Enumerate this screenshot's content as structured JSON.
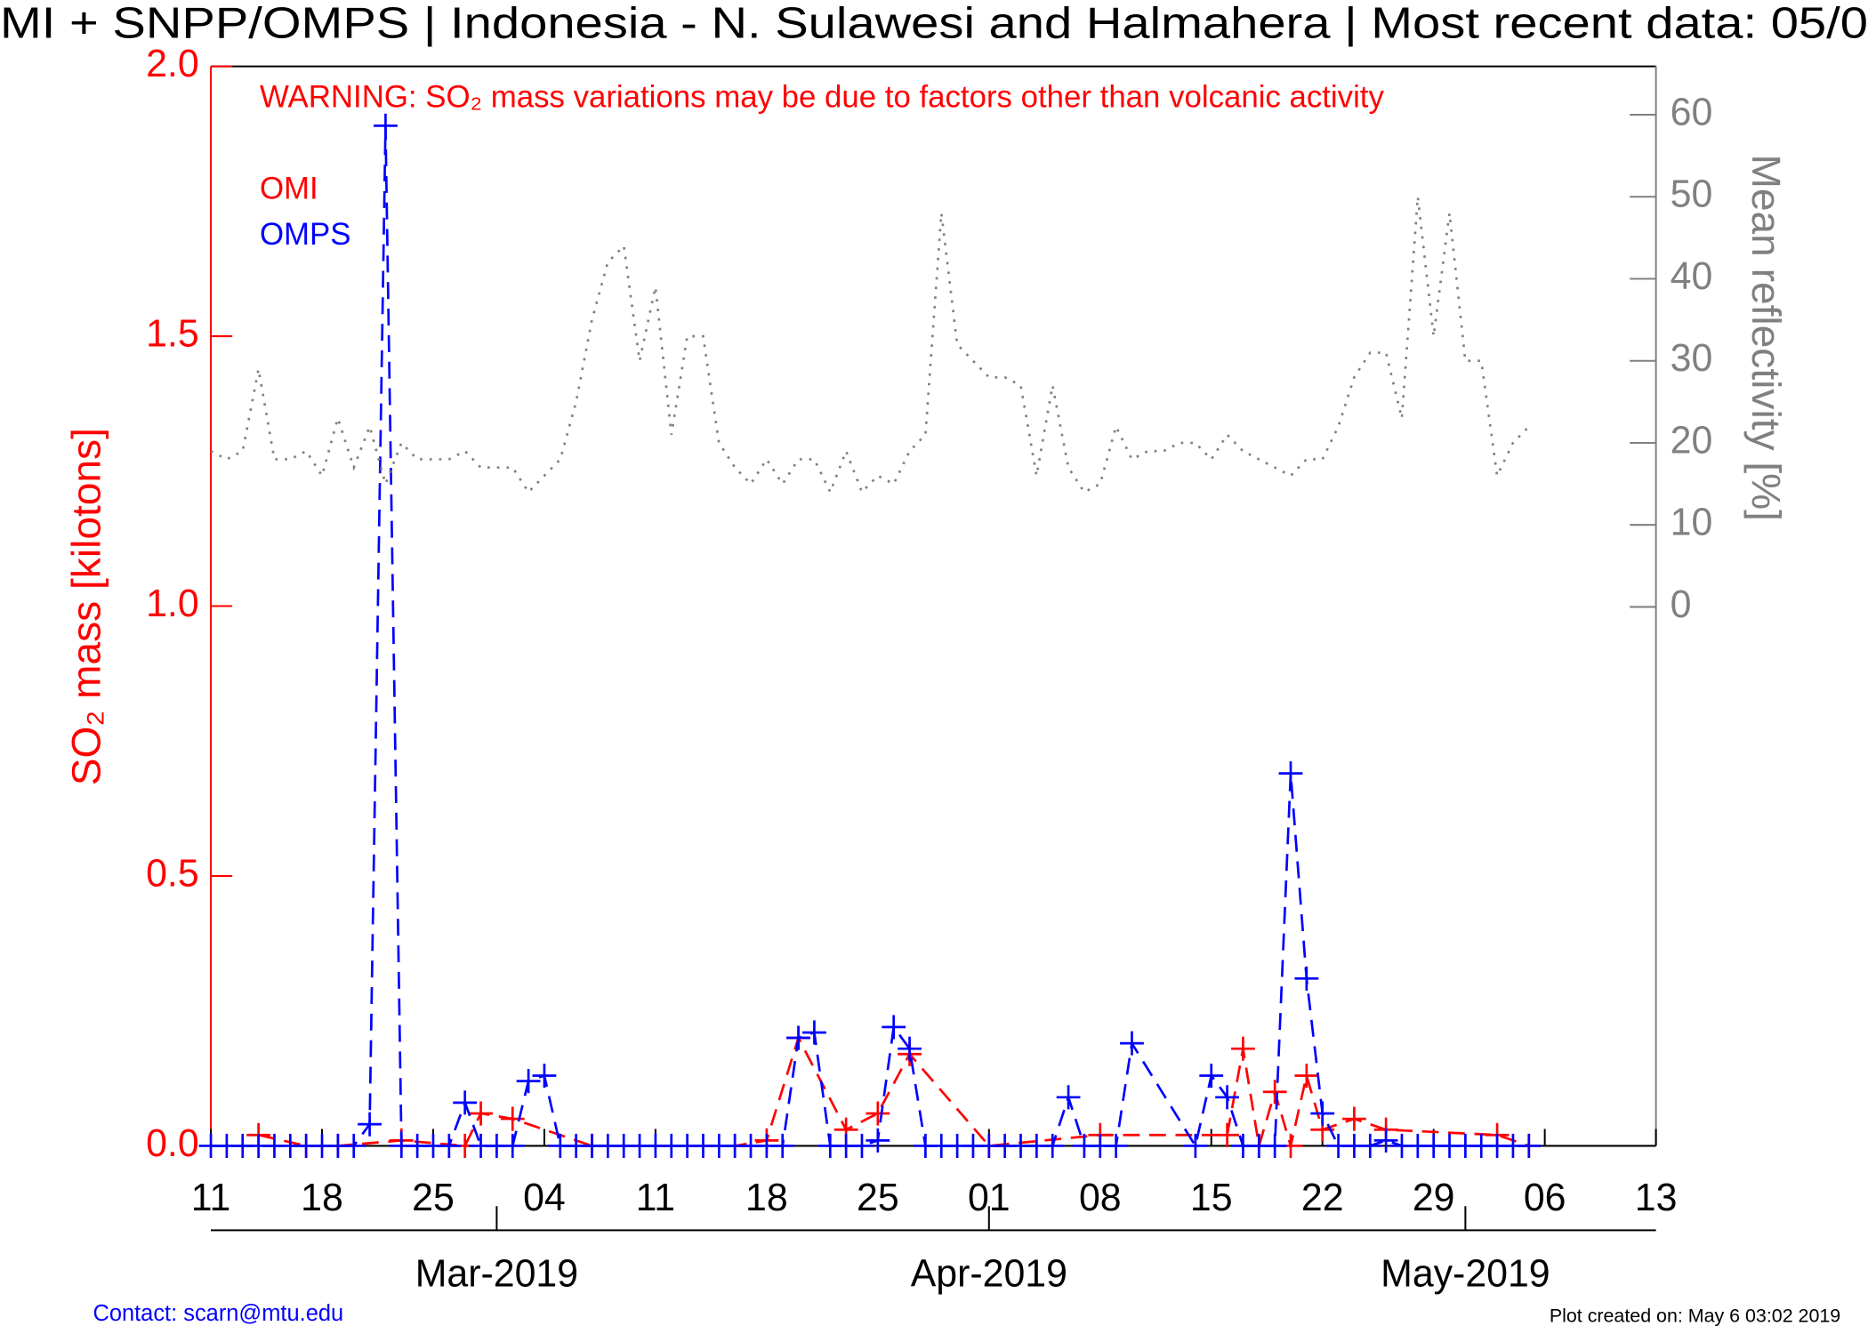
{
  "chart_data": {
    "type": "line",
    "title": "MI + SNPP/OMPS | Indonesia - N. Sulawesi and Halmahera | Most recent data: 05/0",
    "annotation": "WARNING: SO₂ mass variations may be due to factors other than volcanic activity",
    "y_label": "SO₂ mass [kilotons]",
    "y2_label": "Mean reflectivity [%]",
    "contact": "Contact: scarn@mtu.edu",
    "created": "Plot created on: May  6 03:02 2019",
    "xlim": [
      "2019-02-11",
      "2019-05-13"
    ],
    "xticks": [
      {
        "value": "2019-02-11",
        "label": "11"
      },
      {
        "value": "2019-02-18",
        "label": "18"
      },
      {
        "value": "2019-02-25",
        "label": "25"
      },
      {
        "value": "2019-03-04",
        "label": "04"
      },
      {
        "value": "2019-03-11",
        "label": "11"
      },
      {
        "value": "2019-03-18",
        "label": "18"
      },
      {
        "value": "2019-03-25",
        "label": "25"
      },
      {
        "value": "2019-04-01",
        "label": "01"
      },
      {
        "value": "2019-04-08",
        "label": "08"
      },
      {
        "value": "2019-04-15",
        "label": "15"
      },
      {
        "value": "2019-04-22",
        "label": "22"
      },
      {
        "value": "2019-04-29",
        "label": "29"
      },
      {
        "value": "2019-05-06",
        "label": "06"
      },
      {
        "value": "2019-05-13",
        "label": "13"
      }
    ],
    "month_ticks": [
      {
        "value": "2019-03-01",
        "label": "Mar-2019"
      },
      {
        "value": "2019-04-01",
        "label": "Apr-2019"
      },
      {
        "value": "2019-05-01",
        "label": "May-2019"
      }
    ],
    "ylim": [
      0,
      2
    ],
    "yticks": [
      {
        "value": 0,
        "label": "0.0"
      },
      {
        "value": 0.5,
        "label": "0.5"
      },
      {
        "value": 1,
        "label": "1.0"
      },
      {
        "value": 1.5,
        "label": "1.5"
      },
      {
        "value": 2,
        "label": "2.0"
      }
    ],
    "y2lim": [
      -65.7,
      65.9
    ],
    "y2ticks": [
      0,
      10,
      20,
      30,
      40,
      50,
      60
    ],
    "series": [
      {
        "name": "OMI",
        "color": "#ff0000",
        "x": [
          "2019-02-14",
          "2019-02-17",
          "2019-02-19",
          "2019-02-23",
          "2019-02-27",
          "2019-02-28",
          "2019-03-02",
          "2019-03-07",
          "2019-03-16",
          "2019-03-18",
          "2019-03-20",
          "2019-03-23",
          "2019-03-25",
          "2019-03-27",
          "2019-04-01",
          "2019-04-08",
          "2019-04-16",
          "2019-04-17",
          "2019-04-18",
          "2019-04-19",
          "2019-04-20",
          "2019-04-21",
          "2019-04-22",
          "2019-04-24",
          "2019-04-26",
          "2019-05-03",
          "2019-05-05"
        ],
        "values": [
          0.02,
          0,
          0,
          0.01,
          0,
          0.06,
          0.05,
          0,
          0,
          0.01,
          0.2,
          0.03,
          0.06,
          0.17,
          0,
          0.02,
          0.02,
          0.18,
          0,
          0.1,
          0,
          0.13,
          0.03,
          0.05,
          0.03,
          0.02,
          0
        ]
      },
      {
        "name": "OMPS",
        "color": "#0000ff",
        "x": [
          "2019-02-11",
          "2019-02-12",
          "2019-02-13",
          "2019-02-14",
          "2019-02-15",
          "2019-02-16",
          "2019-02-17",
          "2019-02-18",
          "2019-02-19",
          "2019-02-20",
          "2019-02-21",
          "2019-02-22",
          "2019-02-23",
          "2019-02-24",
          "2019-02-25",
          "2019-02-26",
          "2019-02-27",
          "2019-02-28",
          "2019-03-01",
          "2019-03-02",
          "2019-03-03",
          "2019-03-04",
          "2019-03-05",
          "2019-03-06",
          "2019-03-07",
          "2019-03-08",
          "2019-03-09",
          "2019-03-10",
          "2019-03-11",
          "2019-03-12",
          "2019-03-13",
          "2019-03-14",
          "2019-03-15",
          "2019-03-16",
          "2019-03-17",
          "2019-03-18",
          "2019-03-19",
          "2019-03-20",
          "2019-03-21",
          "2019-03-22",
          "2019-03-23",
          "2019-03-24",
          "2019-03-25",
          "2019-03-26",
          "2019-03-27",
          "2019-03-28",
          "2019-03-29",
          "2019-03-30",
          "2019-03-31",
          "2019-04-01",
          "2019-04-02",
          "2019-04-03",
          "2019-04-04",
          "2019-04-05",
          "2019-04-06",
          "2019-04-07",
          "2019-04-08",
          "2019-04-09",
          "2019-04-10",
          "2019-04-14",
          "2019-04-15",
          "2019-04-16",
          "2019-04-17",
          "2019-04-18",
          "2019-04-19",
          "2019-04-20",
          "2019-04-21",
          "2019-04-22",
          "2019-04-23",
          "2019-04-24",
          "2019-04-25",
          "2019-04-26",
          "2019-04-27",
          "2019-04-28",
          "2019-04-29",
          "2019-04-30",
          "2019-05-01",
          "2019-05-02",
          "2019-05-03",
          "2019-05-04",
          "2019-05-05"
        ],
        "values": [
          0,
          0,
          0,
          0,
          0,
          0,
          0,
          0,
          0,
          0,
          0.04,
          1.89,
          0,
          0,
          0,
          0,
          0.08,
          0,
          0,
          0,
          0.12,
          0.13,
          0,
          0,
          0,
          0,
          0,
          0,
          0,
          0,
          0,
          0,
          0,
          0,
          0,
          0,
          0,
          0.2,
          0.21,
          0,
          0,
          0,
          0.01,
          0.22,
          0.18,
          0,
          0,
          0,
          0,
          0,
          0,
          0,
          0,
          0,
          0.09,
          0,
          0,
          0,
          0.19,
          0,
          0.13,
          0.09,
          0,
          0,
          0,
          0.69,
          0.31,
          0.06,
          0,
          0,
          0,
          0.01,
          0,
          0,
          0,
          0,
          0,
          0,
          0,
          0,
          0
        ]
      },
      {
        "color": "#808080",
        "axis": "y2",
        "x": [
          "2019-02-11",
          "2019-02-12",
          "2019-02-13",
          "2019-02-14",
          "2019-02-15",
          "2019-02-16",
          "2019-02-17",
          "2019-02-18",
          "2019-02-19",
          "2019-02-20",
          "2019-02-21",
          "2019-02-22",
          "2019-02-23",
          "2019-02-24",
          "2019-02-25",
          "2019-02-26",
          "2019-02-27",
          "2019-02-28",
          "2019-03-01",
          "2019-03-02",
          "2019-03-03",
          "2019-03-04",
          "2019-03-05",
          "2019-03-06",
          "2019-03-07",
          "2019-03-08",
          "2019-03-09",
          "2019-03-10",
          "2019-03-11",
          "2019-03-12",
          "2019-03-13",
          "2019-03-14",
          "2019-03-15",
          "2019-03-16",
          "2019-03-17",
          "2019-03-18",
          "2019-03-19",
          "2019-03-20",
          "2019-03-21",
          "2019-03-22",
          "2019-03-23",
          "2019-03-24",
          "2019-03-25",
          "2019-03-26",
          "2019-03-27",
          "2019-03-28",
          "2019-03-29",
          "2019-03-30",
          "2019-03-31",
          "2019-04-01",
          "2019-04-02",
          "2019-04-03",
          "2019-04-04",
          "2019-04-05",
          "2019-04-06",
          "2019-04-07",
          "2019-04-08",
          "2019-04-09",
          "2019-04-10",
          "2019-04-11",
          "2019-04-12",
          "2019-04-13",
          "2019-04-14",
          "2019-04-15",
          "2019-04-16",
          "2019-04-17",
          "2019-04-18",
          "2019-04-19",
          "2019-04-20",
          "2019-04-21",
          "2019-04-22",
          "2019-04-23",
          "2019-04-24",
          "2019-04-25",
          "2019-04-26",
          "2019-04-27",
          "2019-04-28",
          "2019-04-29",
          "2019-04-30",
          "2019-05-01",
          "2019-05-02",
          "2019-05-03",
          "2019-05-04",
          "2019-05-05"
        ],
        "values": [
          19,
          18,
          19,
          29,
          18,
          18,
          19,
          16,
          23,
          17,
          22,
          15,
          20,
          18,
          18,
          18,
          19,
          17,
          17,
          17,
          14,
          16,
          18,
          25,
          35,
          42,
          44,
          30,
          39,
          21,
          33,
          33,
          20,
          17,
          15,
          18,
          15,
          18,
          18,
          14,
          19,
          14,
          16,
          15,
          19,
          21,
          48,
          32,
          30,
          28,
          28,
          27,
          16,
          27,
          17,
          14,
          15,
          22,
          18,
          19,
          19,
          20,
          20,
          18,
          21,
          19,
          18,
          17,
          16,
          18,
          18,
          22,
          28,
          31,
          31,
          23,
          50,
          33,
          48,
          30,
          30,
          16,
          20,
          22
        ]
      }
    ]
  }
}
